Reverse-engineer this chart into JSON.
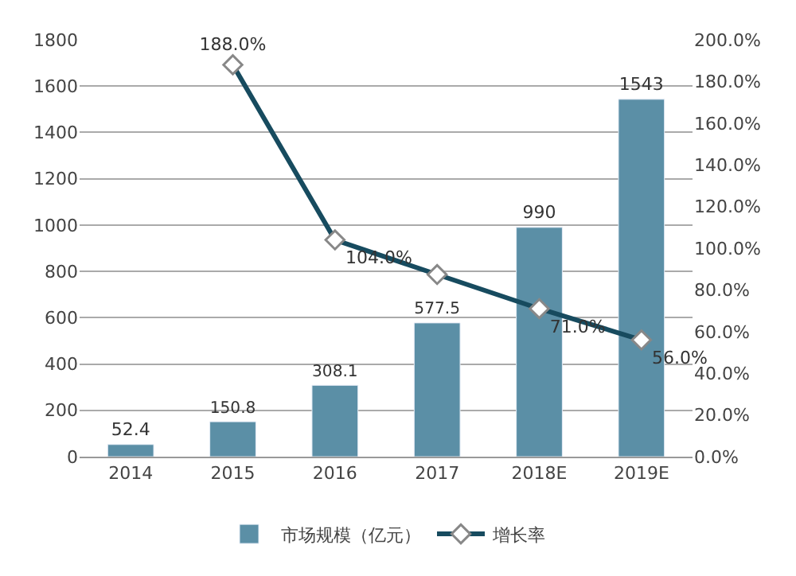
{
  "chart_data": {
    "type": "bar",
    "categories": [
      "2014",
      "2015",
      "2016",
      "2017",
      "2018E",
      "2019E"
    ],
    "series": [
      {
        "name": "市场规模（亿元）",
        "color": "#5b8fa6",
        "values": [
          52.4,
          150.8,
          308.1,
          577.5,
          990,
          1543
        ],
        "value_labels": [
          "52.4",
          "150.8",
          "308.1",
          "577.5",
          "990",
          "1543"
        ]
      },
      {
        "name": "增长率",
        "type": "line",
        "axis": "y2",
        "color": "#174b5f",
        "marker": "diamond",
        "values": [
          null,
          188.0,
          104.0,
          87.4,
          71.0,
          56.0
        ],
        "value_labels": [
          null,
          "188.0%",
          "104.0%",
          null,
          "71.0%",
          "56.0%"
        ]
      }
    ],
    "ylim": [
      0,
      1800
    ],
    "yticks": [
      0,
      200,
      400,
      600,
      800,
      1000,
      1200,
      1400,
      1600,
      1800
    ],
    "y2lim": [
      0,
      200
    ],
    "y2ticks": [
      {
        "value": 0,
        "label": "0.0%"
      },
      {
        "value": 20,
        "label": "20.0%"
      },
      {
        "value": 40,
        "label": "40.0%"
      },
      {
        "value": 60,
        "label": "60.0%"
      },
      {
        "value": 80,
        "label": "80.0%"
      },
      {
        "value": 100,
        "label": "100.0%"
      },
      {
        "value": 120,
        "label": "120.0%"
      },
      {
        "value": 140,
        "label": "140.0%"
      },
      {
        "value": 160,
        "label": "160.0%"
      },
      {
        "value": 180,
        "label": "180.0%"
      },
      {
        "value": 200,
        "label": "200.0%"
      }
    ],
    "grid": "y",
    "legend": "bottom"
  }
}
